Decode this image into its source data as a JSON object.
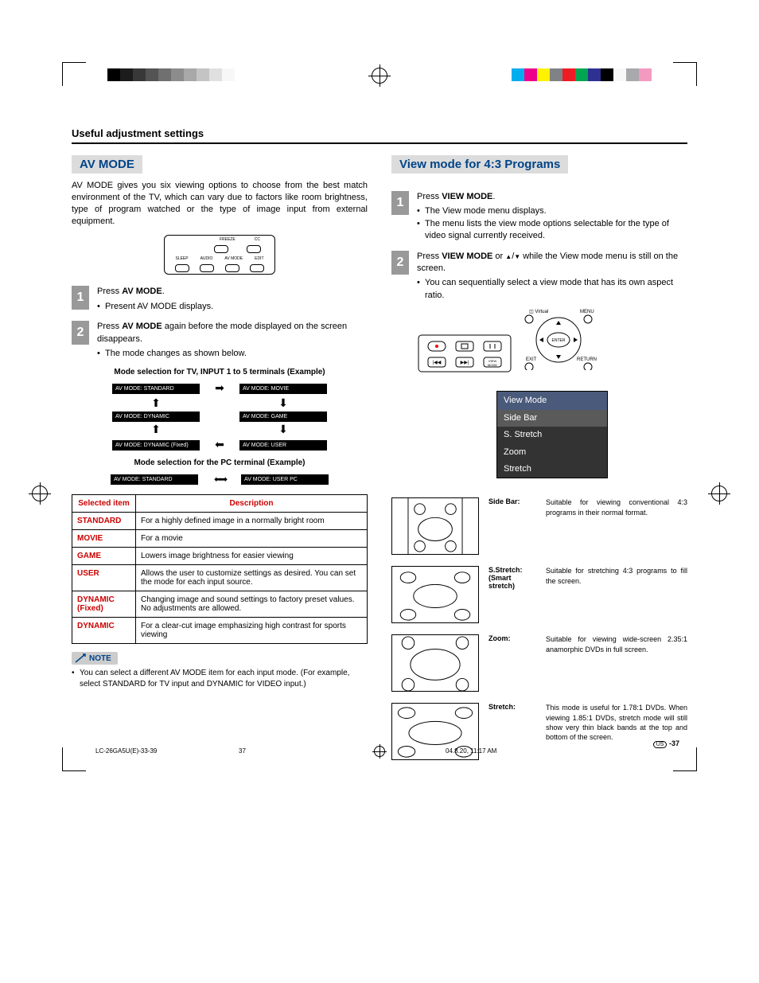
{
  "page": {
    "section_header": "Useful adjustment settings",
    "footer_left": "LC-26GA5U(E)-33-39",
    "footer_mid": "37",
    "footer_right": "04.8.20, 11:17 AM",
    "page_number": "-37",
    "region_code": "US"
  },
  "color_bars": {
    "grays": [
      "#000000",
      "#1c1c1c",
      "#383838",
      "#545454",
      "#707070",
      "#8c8c8c",
      "#a8a8a8",
      "#c4c4c4",
      "#e0e0e0",
      "#f7f7f7"
    ],
    "colors": [
      "#00aeef",
      "#ec008c",
      "#fff200",
      "#808285",
      "#ed1c24",
      "#00a651",
      "#2e3192",
      "#000000",
      "#f7f7f7",
      "#a7a9ac",
      "#f49ac1"
    ]
  },
  "left": {
    "title": "AV MODE",
    "intro": "AV MODE gives you six viewing options to choose from the best match environment of the TV, which can vary due to factors like room brightness, type of program watched or the type of image input from external equipment.",
    "remote_labels": [
      "FREEZE",
      "CC",
      "SLEEP",
      "AUDIO",
      "AV MODE",
      "EDIT"
    ],
    "step1_lead_a": "Press ",
    "step1_lead_b": "AV MODE",
    "step1_lead_c": ".",
    "step1_bullet": "Present AV MODE displays.",
    "step2_lead_a": "Press ",
    "step2_lead_b": "AV MODE",
    "step2_lead_c": " again before the mode displayed on the screen disappears.",
    "step2_bullet": "The mode changes as shown below.",
    "example1_title": "Mode selection for TV, INPUT 1 to 5 terminals (Example)",
    "flow": {
      "tl": "AV MODE: STANDARD",
      "tr": "AV MODE: MOVIE",
      "ml": "AV MODE: DYNAMIC",
      "mr": "AV MODE: GAME",
      "bl": "AV MODE: DYNAMIC (Fixed)",
      "br": "AV MODE: USER"
    },
    "example2_title": "Mode selection for the PC terminal (Example)",
    "flow2": {
      "l": "AV MODE: STANDARD",
      "r": "AV MODE: USER PC"
    },
    "table": {
      "col1": "Selected item",
      "col2": "Description",
      "rows": [
        {
          "item": "STANDARD",
          "desc": "For a highly defined image in a normally bright room"
        },
        {
          "item": "MOVIE",
          "desc": "For a movie"
        },
        {
          "item": "GAME",
          "desc": "Lowers image brightness for easier viewing"
        },
        {
          "item": "USER",
          "desc": "Allows the user to customize settings as desired. You can set the mode for each input source."
        },
        {
          "item": "DYNAMIC (Fixed)",
          "desc": "Changing image and sound settings to factory preset values. No adjustments are allowed."
        },
        {
          "item": "DYNAMIC",
          "desc": "For a clear-cut image emphasizing high contrast for sports viewing"
        }
      ]
    },
    "note_label": "NOTE",
    "note_text": "You can select a different AV MODE item for each input mode. (For example, select STANDARD for TV input and DYNAMIC for VIDEO input.)"
  },
  "right": {
    "title": "View mode for 4:3 Programs",
    "step1_lead_a": "Press ",
    "step1_lead_b": "VIEW MODE",
    "step1_lead_c": ".",
    "step1_b1": "The View mode menu displays.",
    "step1_b2": "The menu lists the view mode options selectable for the type of video signal currently received.",
    "step2_lead_a": "Press ",
    "step2_lead_b": "VIEW MODE",
    "step2_lead_c": " or ",
    "step2_lead_d": " while the View mode menu is still on the screen.",
    "step2_b1": "You can sequentially select a view mode that has its own aspect ratio.",
    "nav_labels": {
      "virtual": "Virtual",
      "menu": "MENU",
      "exit": "EXIT",
      "return": "RETURN",
      "enter": "ENTER"
    },
    "menu": {
      "header": "View Mode",
      "items": [
        "Side Bar",
        "S. Stretch",
        "Zoom",
        "Stretch"
      ],
      "colors": {
        "header_bg": "#4a5a7a",
        "item_bg": "#333333",
        "active_bg": "#5a5a5a",
        "text": "#ffffff"
      }
    },
    "modes": [
      {
        "label": "Side Bar:",
        "desc": "Suitable for viewing conventional 4:3 programs in their normal format."
      },
      {
        "label": "S.Stretch: (Smart stretch)",
        "desc": "Suitable for stretching 4:3 programs to fill the screen."
      },
      {
        "label": "Zoom:",
        "desc": "Suitable for viewing wide-screen 2.35:1 anamorphic DVDs in full screen."
      },
      {
        "label": "Stretch:",
        "desc": "This mode is useful for 1.78:1 DVDs. When viewing 1.85:1 DVDs, stretch mode will still show very thin black bands at the top and bottom of the screen."
      }
    ]
  }
}
